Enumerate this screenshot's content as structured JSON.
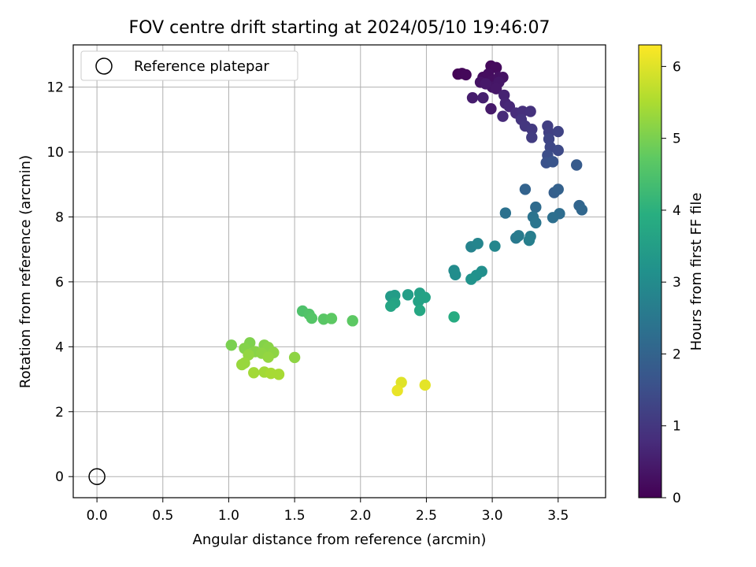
{
  "chart_data": {
    "type": "scatter",
    "title": "FOV centre drift starting at 2024/05/10 19:46:07",
    "xlabel": "Angular distance from reference (arcmin)",
    "ylabel": "Rotation from reference (arcmin)",
    "xlim": [
      -0.18,
      3.86
    ],
    "ylim": [
      -0.65,
      13.3
    ],
    "xticks": [
      "0.0",
      "0.5",
      "1.0",
      "1.5",
      "2.0",
      "2.5",
      "3.0",
      "3.5"
    ],
    "yticks": [
      "0",
      "2",
      "4",
      "6",
      "8",
      "10",
      "12"
    ],
    "grid": true,
    "legend": {
      "position": "top-left",
      "entries": [
        "Reference platepar"
      ]
    },
    "reference_point": {
      "x": 0.0,
      "y": 0.0
    },
    "colorbar": {
      "label": "Hours from first FF file",
      "range": [
        0,
        6.3
      ],
      "ticks": [
        "0",
        "1",
        "2",
        "3",
        "4",
        "5",
        "6"
      ],
      "colormap": [
        "#440154",
        "#472d7b",
        "#3b528b",
        "#2c728e",
        "#21918c",
        "#28ae80",
        "#5ec962",
        "#addc30",
        "#fde725"
      ]
    },
    "points": [
      {
        "x": 2.74,
        "y": 12.4,
        "t": 0.05
      },
      {
        "x": 2.77,
        "y": 12.42,
        "t": 0.1
      },
      {
        "x": 2.8,
        "y": 12.38,
        "t": 0.12
      },
      {
        "x": 2.99,
        "y": 12.65,
        "t": 0.15
      },
      {
        "x": 3.03,
        "y": 12.6,
        "t": 0.18
      },
      {
        "x": 2.93,
        "y": 12.3,
        "t": 0.2
      },
      {
        "x": 2.97,
        "y": 12.4,
        "t": 0.22
      },
      {
        "x": 3.0,
        "y": 12.2,
        "t": 0.25
      },
      {
        "x": 3.05,
        "y": 12.3,
        "t": 0.28
      },
      {
        "x": 3.08,
        "y": 12.3,
        "t": 0.3
      },
      {
        "x": 2.91,
        "y": 12.15,
        "t": 0.32
      },
      {
        "x": 3.0,
        "y": 12.0,
        "t": 0.35
      },
      {
        "x": 3.05,
        "y": 12.15,
        "t": 0.38
      },
      {
        "x": 3.03,
        "y": 11.95,
        "t": 0.4
      },
      {
        "x": 2.95,
        "y": 12.1,
        "t": 0.42
      },
      {
        "x": 2.99,
        "y": 11.33,
        "t": 0.45
      },
      {
        "x": 2.85,
        "y": 11.67,
        "t": 0.5
      },
      {
        "x": 2.93,
        "y": 11.67,
        "t": 0.55
      },
      {
        "x": 3.09,
        "y": 11.75,
        "t": 0.6
      },
      {
        "x": 3.1,
        "y": 11.5,
        "t": 0.65
      },
      {
        "x": 3.13,
        "y": 11.4,
        "t": 0.7
      },
      {
        "x": 3.08,
        "y": 11.1,
        "t": 0.75
      },
      {
        "x": 3.18,
        "y": 11.2,
        "t": 0.8
      },
      {
        "x": 3.23,
        "y": 11.25,
        "t": 0.85
      },
      {
        "x": 3.29,
        "y": 11.25,
        "t": 0.9
      },
      {
        "x": 3.22,
        "y": 11.0,
        "t": 0.95
      },
      {
        "x": 3.25,
        "y": 10.8,
        "t": 1.0
      },
      {
        "x": 3.3,
        "y": 10.7,
        "t": 1.05
      },
      {
        "x": 3.3,
        "y": 10.45,
        "t": 1.1
      },
      {
        "x": 3.42,
        "y": 10.8,
        "t": 1.15
      },
      {
        "x": 3.43,
        "y": 10.6,
        "t": 1.2
      },
      {
        "x": 3.5,
        "y": 10.63,
        "t": 1.25
      },
      {
        "x": 3.43,
        "y": 10.4,
        "t": 1.3
      },
      {
        "x": 3.44,
        "y": 10.15,
        "t": 1.35
      },
      {
        "x": 3.5,
        "y": 10.05,
        "t": 1.4
      },
      {
        "x": 3.42,
        "y": 9.9,
        "t": 1.5
      },
      {
        "x": 3.41,
        "y": 9.67,
        "t": 1.6
      },
      {
        "x": 3.46,
        "y": 9.7,
        "t": 1.65
      },
      {
        "x": 3.64,
        "y": 9.6,
        "t": 1.8
      },
      {
        "x": 3.47,
        "y": 8.75,
        "t": 1.9
      },
      {
        "x": 3.5,
        "y": 8.85,
        "t": 1.95
      },
      {
        "x": 3.25,
        "y": 8.85,
        "t": 2.0
      },
      {
        "x": 3.66,
        "y": 8.35,
        "t": 2.05
      },
      {
        "x": 3.68,
        "y": 8.22,
        "t": 2.1
      },
      {
        "x": 3.33,
        "y": 8.3,
        "t": 2.2
      },
      {
        "x": 3.51,
        "y": 8.1,
        "t": 2.25
      },
      {
        "x": 3.46,
        "y": 7.98,
        "t": 2.3
      },
      {
        "x": 3.1,
        "y": 8.12,
        "t": 2.35
      },
      {
        "x": 3.31,
        "y": 8.0,
        "t": 2.4
      },
      {
        "x": 3.33,
        "y": 7.82,
        "t": 2.45
      },
      {
        "x": 3.18,
        "y": 7.35,
        "t": 2.55
      },
      {
        "x": 3.2,
        "y": 7.42,
        "t": 2.6
      },
      {
        "x": 3.29,
        "y": 7.4,
        "t": 2.65
      },
      {
        "x": 3.28,
        "y": 7.28,
        "t": 2.7
      },
      {
        "x": 2.84,
        "y": 7.08,
        "t": 2.8
      },
      {
        "x": 2.89,
        "y": 7.18,
        "t": 2.85
      },
      {
        "x": 3.02,
        "y": 7.1,
        "t": 2.9
      },
      {
        "x": 2.71,
        "y": 6.35,
        "t": 3.0
      },
      {
        "x": 2.72,
        "y": 6.22,
        "t": 3.05
      },
      {
        "x": 2.92,
        "y": 6.32,
        "t": 3.1
      },
      {
        "x": 2.88,
        "y": 6.2,
        "t": 3.15
      },
      {
        "x": 2.84,
        "y": 6.08,
        "t": 3.2
      },
      {
        "x": 2.23,
        "y": 5.55,
        "t": 3.4
      },
      {
        "x": 2.26,
        "y": 5.58,
        "t": 3.45
      },
      {
        "x": 2.36,
        "y": 5.6,
        "t": 3.5
      },
      {
        "x": 2.45,
        "y": 5.65,
        "t": 3.55
      },
      {
        "x": 2.49,
        "y": 5.52,
        "t": 3.6
      },
      {
        "x": 2.44,
        "y": 5.4,
        "t": 3.62
      },
      {
        "x": 2.26,
        "y": 5.35,
        "t": 3.65
      },
      {
        "x": 2.23,
        "y": 5.25,
        "t": 3.7
      },
      {
        "x": 2.45,
        "y": 5.12,
        "t": 3.75
      },
      {
        "x": 2.71,
        "y": 4.92,
        "t": 3.85
      },
      {
        "x": 1.56,
        "y": 5.1,
        "t": 4.5
      },
      {
        "x": 1.61,
        "y": 5.0,
        "t": 4.55
      },
      {
        "x": 1.63,
        "y": 4.88,
        "t": 4.6
      },
      {
        "x": 1.72,
        "y": 4.85,
        "t": 4.65
      },
      {
        "x": 1.78,
        "y": 4.87,
        "t": 4.7
      },
      {
        "x": 1.94,
        "y": 4.8,
        "t": 4.7
      },
      {
        "x": 1.02,
        "y": 4.05,
        "t": 5.0
      },
      {
        "x": 1.16,
        "y": 4.12,
        "t": 5.05
      },
      {
        "x": 1.12,
        "y": 3.95,
        "t": 5.1
      },
      {
        "x": 1.27,
        "y": 4.05,
        "t": 5.1
      },
      {
        "x": 1.3,
        "y": 3.98,
        "t": 5.15
      },
      {
        "x": 1.2,
        "y": 3.85,
        "t": 5.15
      },
      {
        "x": 1.25,
        "y": 3.8,
        "t": 5.2
      },
      {
        "x": 1.34,
        "y": 3.82,
        "t": 5.2
      },
      {
        "x": 1.15,
        "y": 3.75,
        "t": 5.25
      },
      {
        "x": 1.3,
        "y": 3.68,
        "t": 5.25
      },
      {
        "x": 1.12,
        "y": 3.5,
        "t": 5.3
      },
      {
        "x": 1.1,
        "y": 3.45,
        "t": 5.3
      },
      {
        "x": 1.5,
        "y": 3.67,
        "t": 5.2
      },
      {
        "x": 1.19,
        "y": 3.2,
        "t": 5.4
      },
      {
        "x": 1.27,
        "y": 3.22,
        "t": 5.4
      },
      {
        "x": 1.32,
        "y": 3.18,
        "t": 5.45
      },
      {
        "x": 1.38,
        "y": 3.15,
        "t": 5.45
      },
      {
        "x": 2.31,
        "y": 2.9,
        "t": 6.0
      },
      {
        "x": 2.28,
        "y": 2.65,
        "t": 6.1
      },
      {
        "x": 2.49,
        "y": 2.82,
        "t": 6.05
      }
    ]
  }
}
